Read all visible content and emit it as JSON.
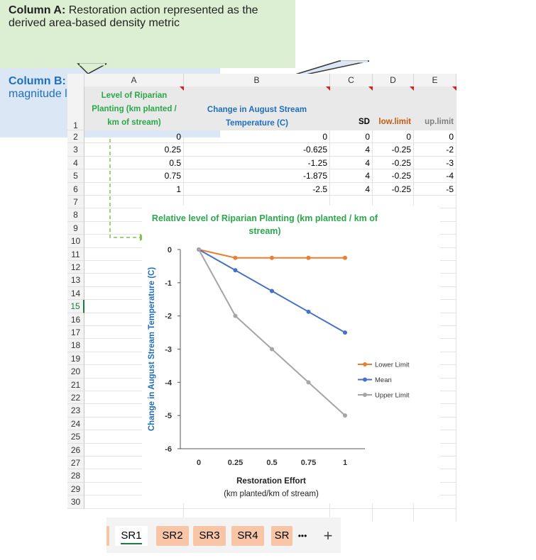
{
  "callouts": {
    "a": {
      "bold": "Column A:",
      "text": " Restoration action represented as the derived area-based density metric"
    },
    "b": {
      "bold": "Column B:",
      "text": " Change in the stressor magnitude level"
    }
  },
  "sheet": {
    "columns": [
      "A",
      "B",
      "C",
      "D",
      "E"
    ],
    "rows": [
      "1",
      "2",
      "3",
      "4",
      "5",
      "6",
      "7",
      "8",
      "9",
      "10",
      "11",
      "12",
      "13",
      "14",
      "15",
      "16",
      "17",
      "18",
      "19",
      "20",
      "21",
      "22",
      "23",
      "24",
      "25",
      "26",
      "27",
      "28",
      "29",
      "30"
    ],
    "active_row": "15",
    "headers": {
      "a": "Level of Riparian Planting (km planted / km of stream)",
      "b": "Change in August Stream Temperature (C)",
      "c": "SD",
      "d": "low.limit",
      "e": "up.limit"
    },
    "data": [
      [
        "0",
        "0",
        "0",
        "0",
        "0"
      ],
      [
        "0.25",
        "-0.625",
        "4",
        "-0.25",
        "-2"
      ],
      [
        "0.5",
        "-1.25",
        "4",
        "-0.25",
        "-3"
      ],
      [
        "0.75",
        "-1.875",
        "4",
        "-0.25",
        "-4"
      ],
      [
        "1",
        "-2.5",
        "4",
        "-0.25",
        "-5"
      ]
    ]
  },
  "chart_data": {
    "type": "line",
    "title": "Relative level of Riparian Planting (km planted / km of stream)",
    "xlabel": "Restoration Effort",
    "xlabel_sub": "(km planted/km of stream)",
    "ylabel": "Change in August Stream Temperature (C)",
    "categories": [
      "0",
      "0.25",
      "0.5",
      "0.75",
      "1"
    ],
    "y_ticks": [
      "0",
      "-1",
      "-2",
      "-3",
      "-4",
      "-5",
      "-6"
    ],
    "ylim": [
      -6,
      0
    ],
    "legend_position": "right",
    "series": [
      {
        "name": "Lower Limit",
        "values": [
          0,
          -0.25,
          -0.25,
          -0.25,
          -0.25
        ],
        "color": "#ed7d31"
      },
      {
        "name": "Mean",
        "values": [
          0,
          -0.625,
          -1.25,
          -1.875,
          -2.5
        ],
        "color": "#4472c4"
      },
      {
        "name": "Upper Limit",
        "values": [
          0,
          -2,
          -3,
          -4,
          -5
        ],
        "color": "#a5a5a5"
      }
    ],
    "colors": {
      "title": "#2aa84a",
      "ylabel": "#1f6fc0"
    }
  },
  "tabs": {
    "items": [
      "SR1",
      "SR2",
      "SR3",
      "SR4",
      "SR"
    ],
    "more": "•••",
    "add": "+"
  }
}
